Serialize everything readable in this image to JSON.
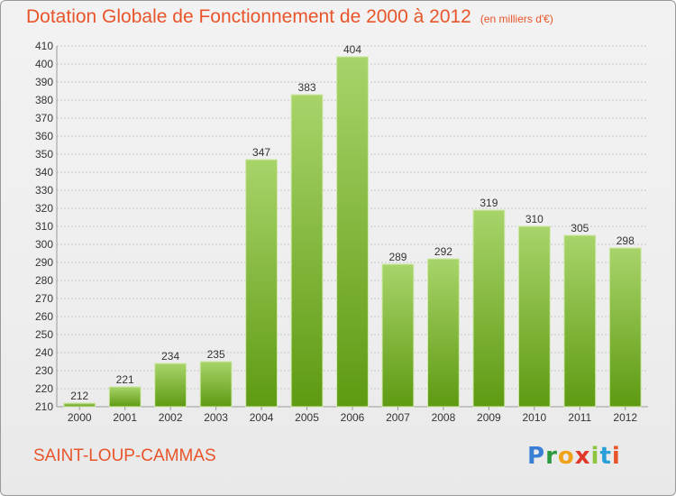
{
  "header": {
    "title": "Dotation Globale de Fonctionnement de 2000 à 2012",
    "unit": "(en milliers d'€)"
  },
  "footer": {
    "commune": "SAINT-LOUP-CAMMAS",
    "brand": {
      "letters": [
        "P",
        "r",
        "o",
        "x",
        "i",
        "t",
        "i"
      ]
    }
  },
  "colors": {
    "title": "#e8552a",
    "bar_light": "#a8d46a",
    "bar_dark": "#5e9a12",
    "grid": "#c8c8c8",
    "axis_text": "#333333"
  },
  "chart_data": {
    "type": "bar",
    "categories": [
      "2000",
      "2001",
      "2002",
      "2003",
      "2004",
      "2005",
      "2006",
      "2007",
      "2008",
      "2009",
      "2010",
      "2011",
      "2012"
    ],
    "values": [
      212,
      221,
      234,
      235,
      347,
      383,
      404,
      289,
      292,
      319,
      310,
      305,
      298
    ],
    "title": "Dotation Globale de Fonctionnement de 2000 à 2012",
    "subtitle": "(en milliers d'€)",
    "xlabel": "",
    "ylabel": "",
    "ylim": [
      210,
      410
    ],
    "yticks": [
      210,
      220,
      230,
      240,
      250,
      260,
      270,
      280,
      290,
      300,
      310,
      320,
      330,
      340,
      350,
      360,
      370,
      380,
      390,
      400,
      410
    ],
    "grid": true,
    "data_labels": true
  }
}
